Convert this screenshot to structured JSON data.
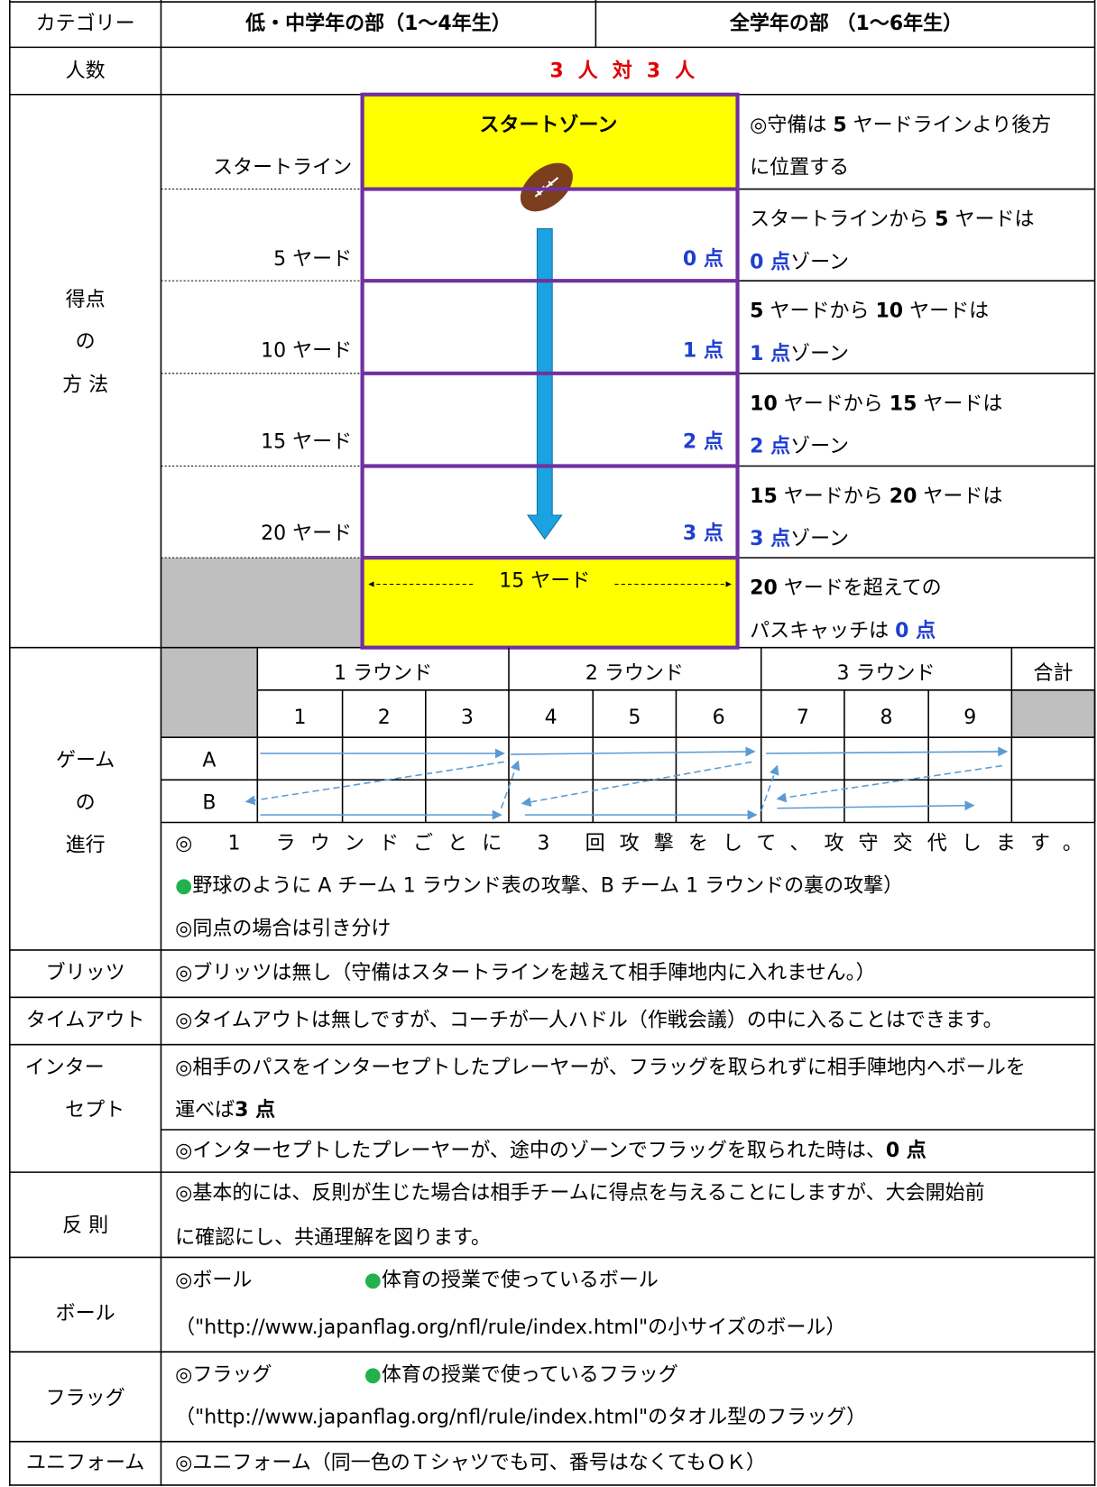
{
  "header": {
    "label": "カテゴリー",
    "col1": "低・中学年の部（1〜4年生）",
    "col2": "全学年の部 （1〜6年生）"
  },
  "players": {
    "label": "人数",
    "value": "3 人 対 3 人"
  },
  "scoring": {
    "label": [
      "得点",
      "の",
      "方 法"
    ],
    "zone_title": "スタートゾーン",
    "field_labels": [
      "スタートライン",
      "5 ヤード",
      "10 ヤード",
      "15 ヤード",
      "20 ヤード"
    ],
    "points": [
      "0 点",
      "1 点",
      "2 点",
      "3 点"
    ],
    "width_label": "15 ヤード",
    "notes": [
      [
        [
          {
            "text": "◎守備は "
          },
          {
            "text": "5",
            "style": "b"
          },
          {
            "text": " ヤードラインより後方"
          }
        ],
        [
          {
            "text": "に位置する"
          }
        ]
      ],
      [
        [
          {
            "text": "スタートラインから "
          },
          {
            "text": "5",
            "style": "b"
          },
          {
            "text": " ヤードは"
          }
        ],
        [
          {
            "text": "0 点",
            "style": "blue"
          },
          {
            "text": "ゾーン"
          }
        ]
      ],
      [
        [
          {
            "text": "5",
            "style": "b"
          },
          {
            "text": " ヤードから "
          },
          {
            "text": "10",
            "style": "b"
          },
          {
            "text": " ヤードは"
          }
        ],
        [
          {
            "text": "1 点",
            "style": "blue"
          },
          {
            "text": "ゾーン"
          }
        ]
      ],
      [
        [
          {
            "text": "10",
            "style": "b"
          },
          {
            "text": " ヤードから "
          },
          {
            "text": "15",
            "style": "b"
          },
          {
            "text": " ヤードは"
          }
        ],
        [
          {
            "text": "2 点",
            "style": "blue"
          },
          {
            "text": "ゾーン"
          }
        ]
      ],
      [
        [
          {
            "text": "15",
            "style": "b"
          },
          {
            "text": " ヤードから "
          },
          {
            "text": "20",
            "style": "b"
          },
          {
            "text": " ヤードは"
          }
        ],
        [
          {
            "text": "3 点",
            "style": "blue"
          },
          {
            "text": "ゾーン"
          }
        ]
      ],
      [
        [
          {
            "text": "20",
            "style": "b"
          },
          {
            "text": " ヤードを超えての"
          }
        ],
        [
          {
            "text": "パスキャッチは "
          },
          {
            "text": "0 点",
            "style": "blue"
          }
        ]
      ]
    ]
  },
  "game": {
    "label": [
      "ゲーム",
      "の",
      "進行"
    ],
    "rounds": [
      "1 ラウンド",
      "2 ラウンド",
      "3 ラウンド"
    ],
    "total": "合計",
    "innings": [
      1,
      2,
      3,
      4,
      5,
      6,
      7,
      8,
      9
    ],
    "teams": [
      "A",
      "B"
    ],
    "notes": [
      [
        {
          "text": "◎ 1 ラウンドごとに 3 回攻撃をして、攻守交代します。"
        }
      ],
      [
        {
          "text": "●",
          "style": "green"
        },
        {
          "text": "野球のように A チーム 1 ラウンド表の攻撃、B チーム 1 ラウンドの裏の攻撃）"
        }
      ],
      [
        {
          "text": "◎同点の場合は引き分け"
        }
      ]
    ]
  },
  "rules": [
    {
      "label": [
        "ブリッツ"
      ],
      "lines": [
        [
          {
            "text": "◎ブリッツは無し（守備はスタートラインを越えて相手陣地内に入れません。）"
          }
        ]
      ]
    },
    {
      "label": [
        "タイムアウト"
      ],
      "lines": [
        [
          {
            "text": "◎タイムアウトは無しですが、コーチが一人ハドル（作戦会議）の中に入ることはできます。"
          }
        ]
      ]
    },
    {
      "label": [
        "インター",
        "セプト"
      ],
      "lines": [
        [
          {
            "text": "◎相手のパスをインターセプトしたプレーヤーが、フラッグを取られずに相手陣地内へボールを"
          }
        ],
        [
          {
            "text": " 運べば"
          },
          {
            "text": "3 点",
            "style": "b"
          }
        ],
        [
          {
            "text": "◎インターセプトしたプレーヤーが、途中のゾーンでフラッグを取られた時は、"
          },
          {
            "text": "0 点",
            "style": "b"
          }
        ]
      ]
    },
    {
      "label": [
        "反 則"
      ],
      "lines": [
        [
          {
            "text": "◎基本的には、反則が生じた場合は相手チームに得点を与えることにしますが、大会開始前"
          }
        ],
        [
          {
            "text": "に確認にし、共通理解を図ります。"
          }
        ]
      ]
    },
    {
      "label": [
        "ボール"
      ],
      "lines": [
        [
          {
            "text": "◎ボール"
          },
          {
            "text": "●",
            "style": "green"
          },
          {
            "text": "体育の授業で使っているボール"
          }
        ],
        [
          {
            "text": "（\"http://www.japanflag.org/nfl/rule/index.html\"の小サイズのボール）"
          }
        ]
      ]
    },
    {
      "label": [
        "フラッグ"
      ],
      "lines": [
        [
          {
            "text": "◎フラッグ"
          },
          {
            "text": "●",
            "style": "green"
          },
          {
            "text": "体育の授業で使っているフラッグ"
          }
        ],
        [
          {
            "text": "（\"http://www.japanflag.org/nfl/rule/index.html\"のタオル型のフラッグ）"
          }
        ]
      ]
    },
    {
      "label": [
        "ユニフォーム"
      ],
      "lines": [
        [
          {
            "text": "◎ユニフォーム（同一色のＴシャツでも可、番号はなくてもＯＫ）"
          }
        ]
      ]
    }
  ]
}
